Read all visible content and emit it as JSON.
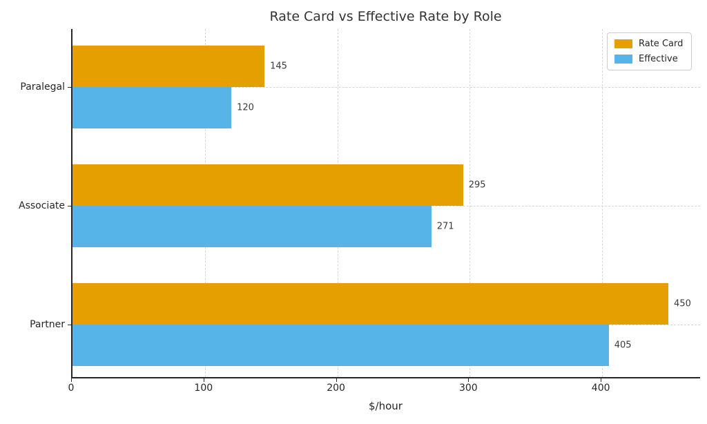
{
  "chart_data": {
    "type": "bar",
    "orientation": "horizontal",
    "title": "Rate Card vs Effective Rate by Role",
    "xlabel": "$/hour",
    "ylabel": "",
    "categories": [
      "Paralegal",
      "Associate",
      "Partner"
    ],
    "series": [
      {
        "name": "Rate Card",
        "color": "#E69F00",
        "values": [
          145,
          295,
          450
        ]
      },
      {
        "name": "Effective",
        "color": "#56B4E9",
        "values": [
          120,
          271,
          405
        ]
      }
    ],
    "x_ticks": [
      0,
      100,
      200,
      300,
      400
    ],
    "xlim": [
      0,
      475
    ],
    "grid": true,
    "grid_style": "dashed",
    "legend_position": "upper right",
    "value_labels_shown": true
  }
}
